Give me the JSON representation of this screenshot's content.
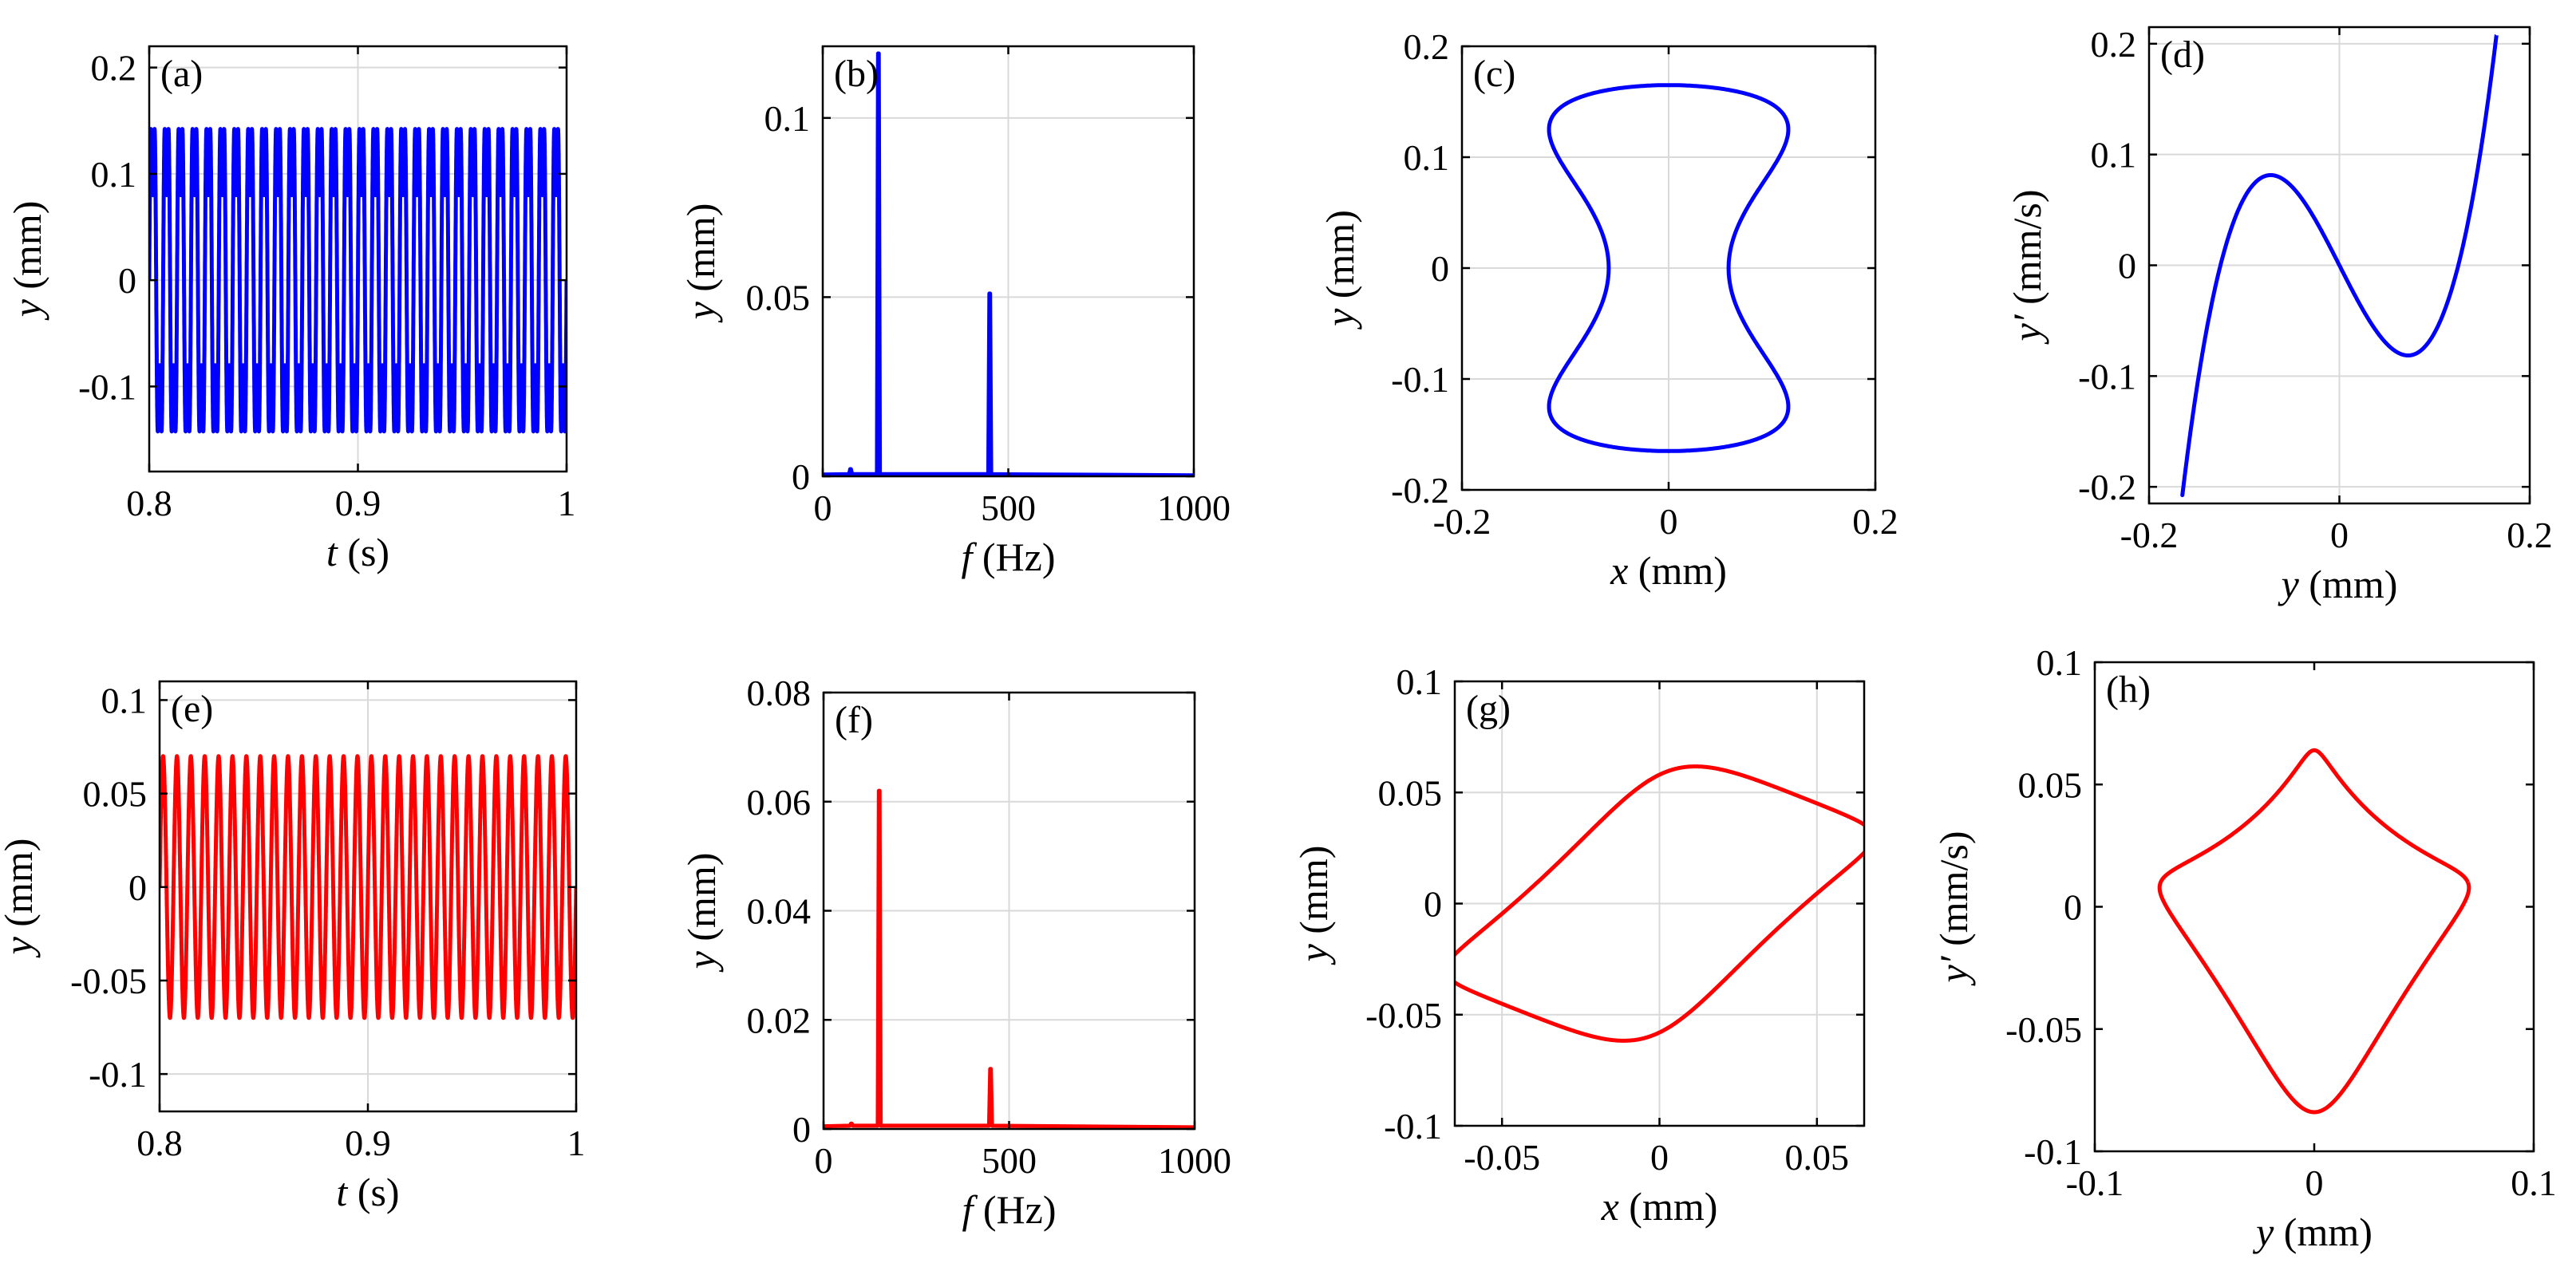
{
  "colors": {
    "top_row": "#0000ff",
    "bottom_row": "#ff0000"
  },
  "chart_data": [
    {
      "id": "a",
      "label": "(a)",
      "type": "line",
      "description": "time response, ~30 cycles between t=0.8 and 1 s, oscillating between -0.165 and 0.165 mm with small secondary wiggle near 0",
      "xlabel_italic": "t",
      "xlabel_unit": " (s)",
      "ylabel_italic": "y",
      "ylabel_unit": " (mm)",
      "xlim": [
        0.8,
        1.0
      ],
      "ylim": [
        -0.18,
        0.22
      ],
      "xticks": [
        0.8,
        0.9,
        1.0
      ],
      "xtick_labels": [
        "0.8",
        "0.9",
        "1"
      ],
      "yticks": [
        -0.1,
        0,
        0.1,
        0.2
      ],
      "ytick_labels": [
        "-0.1",
        "0",
        "0.1",
        "0.2"
      ],
      "grid": true,
      "color": "#0000ff",
      "signal": {
        "frequency_hz": 150,
        "amplitude": 0.165,
        "cycles_in_window": 30,
        "min": -0.165,
        "max": 0.165
      }
    },
    {
      "id": "b",
      "label": "(b)",
      "type": "line",
      "description": "frequency spectrum",
      "xlabel_italic": "f",
      "xlabel_unit": " (Hz)",
      "ylabel_italic": "y",
      "ylabel_unit": " (mm)",
      "xlim": [
        0,
        1000
      ],
      "ylim": [
        0,
        0.12
      ],
      "xticks": [
        0,
        500,
        1000
      ],
      "xtick_labels": [
        "0",
        "500",
        "1000"
      ],
      "yticks": [
        0,
        0.05,
        0.1
      ],
      "ytick_labels": [
        "0",
        "0.05",
        "0.1"
      ],
      "grid": true,
      "color": "#0000ff",
      "peaks": [
        {
          "f": 75,
          "amplitude": 0.002
        },
        {
          "f": 150,
          "amplitude": 0.118
        },
        {
          "f": 450,
          "amplitude": 0.051
        }
      ]
    },
    {
      "id": "c",
      "label": "(c)",
      "type": "line",
      "description": "orbit (x vs y), double-lobed closed curve with inner loops near (-0.1, 0) and (0.1, 0)",
      "xlabel_italic": "x",
      "xlabel_unit": "  (mm)",
      "ylabel_italic": "y",
      "ylabel_unit": "  (mm)",
      "xlim": [
        -0.2,
        0.2
      ],
      "ylim": [
        -0.2,
        0.2
      ],
      "xticks": [
        -0.2,
        0,
        0.2
      ],
      "xtick_labels": [
        "-0.2",
        "0",
        "0.2"
      ],
      "yticks": [
        -0.2,
        -0.1,
        0,
        0.1,
        0.2
      ],
      "ytick_labels": [
        "-0.2",
        "-0.1",
        "0",
        "0.1",
        "0.2"
      ],
      "grid": true,
      "color": "#0000ff",
      "extent": {
        "x_min": -0.16,
        "x_max": 0.16,
        "y_min": -0.165,
        "y_max": 0.165
      }
    },
    {
      "id": "d",
      "label": "(d)",
      "type": "line",
      "description": "phase portrait (y vs y'), figure-eight shape crossing near origin",
      "xlabel_italic": "y",
      "xlabel_unit": " (mm)",
      "ylabel_italic": "y′",
      "ylabel_unit": " (mm/s)",
      "xlim": [
        -0.2,
        0.2
      ],
      "ylim": [
        -0.215,
        0.215
      ],
      "xticks": [
        -0.2,
        0,
        0.2
      ],
      "xtick_labels": [
        "-0.2",
        "0",
        "0.2"
      ],
      "yticks": [
        -0.2,
        -0.1,
        0,
        0.1,
        0.2
      ],
      "ytick_labels": [
        "-0.2",
        "-0.1",
        "0",
        "0.1",
        "0.2"
      ],
      "grid": true,
      "color": "#0000ff",
      "extent": {
        "x_min": -0.165,
        "x_max": 0.165,
        "y_min": -0.21,
        "y_max": 0.21
      }
    },
    {
      "id": "e",
      "label": "(e)",
      "type": "line",
      "description": "time response, ~30 cycles, oscillating between -0.07 and 0.07 mm",
      "xlabel_italic": "t",
      "xlabel_unit": " (s)",
      "ylabel_italic": "y",
      "ylabel_unit": " (mm)",
      "xlim": [
        0.8,
        1.0
      ],
      "ylim": [
        -0.12,
        0.11
      ],
      "xticks": [
        0.8,
        0.9,
        1.0
      ],
      "xtick_labels": [
        "0.8",
        "0.9",
        "1"
      ],
      "yticks": [
        -0.1,
        -0.05,
        0,
        0.05,
        0.1
      ],
      "ytick_labels": [
        "-0.1",
        "-0.05",
        "0",
        "0.05",
        "0.1"
      ],
      "grid": true,
      "color": "#ff0000",
      "signal": {
        "frequency_hz": 150,
        "amplitude": 0.07,
        "cycles_in_window": 30,
        "min": -0.07,
        "max": 0.07
      }
    },
    {
      "id": "f",
      "label": "(f)",
      "type": "line",
      "description": "frequency spectrum",
      "xlabel_italic": "f",
      "xlabel_unit": " (Hz)",
      "ylabel_italic": "y",
      "ylabel_unit": "  (mm)",
      "xlim": [
        0,
        1000
      ],
      "ylim": [
        0,
        0.08
      ],
      "xticks": [
        0,
        500,
        1000
      ],
      "xtick_labels": [
        "0",
        "500",
        "1000"
      ],
      "yticks": [
        0,
        0.02,
        0.04,
        0.06,
        0.08
      ],
      "ytick_labels": [
        "0",
        "0.02",
        "0.04",
        "0.06",
        "0.08"
      ],
      "grid": true,
      "color": "#ff0000",
      "peaks": [
        {
          "f": 75,
          "amplitude": 0.001
        },
        {
          "f": 150,
          "amplitude": 0.062
        },
        {
          "f": 450,
          "amplitude": 0.011
        }
      ]
    },
    {
      "id": "g",
      "label": "(g)",
      "type": "line",
      "description": "orbit (x vs y), tilted bean-shaped closed curve",
      "xlabel_italic": "x",
      "xlabel_unit": "  (mm)",
      "ylabel_italic": "y",
      "ylabel_unit": "  (mm)",
      "xlim": [
        -0.065,
        0.065
      ],
      "ylim": [
        -0.1,
        0.1
      ],
      "xticks": [
        -0.05,
        0,
        0.05
      ],
      "xtick_labels": [
        "-0.05",
        "0",
        "0.05"
      ],
      "yticks": [
        -0.1,
        -0.05,
        0,
        0.05,
        0.1
      ],
      "ytick_labels": [
        "-0.1",
        "-0.05",
        "0",
        "0.05",
        "0.1"
      ],
      "grid": true,
      "color": "#ff0000",
      "extent": {
        "x_min": -0.065,
        "x_max": 0.065,
        "y_min": -0.07,
        "y_max": 0.07
      }
    },
    {
      "id": "h",
      "label": "(h)",
      "type": "line",
      "description": "phase portrait (y vs y'), closed curve with two inward dents",
      "xlabel_italic": "y",
      "xlabel_unit": " (mm)",
      "ylabel_italic": "y′",
      "ylabel_unit": " (mm/s)",
      "xlim": [
        -0.1,
        0.1
      ],
      "ylim": [
        -0.1,
        0.1
      ],
      "xticks": [
        -0.1,
        0,
        0.1
      ],
      "xtick_labels": [
        "-0.1",
        "0",
        "0.1"
      ],
      "yticks": [
        -0.1,
        -0.05,
        0,
        0.05,
        0.1
      ],
      "ytick_labels": [
        "-0.1",
        "-0.05",
        "0",
        "0.05",
        "0.1"
      ],
      "grid": false,
      "color": "#ff0000",
      "extent": {
        "x_min": -0.07,
        "x_max": 0.07,
        "y_min": -0.079,
        "y_max": 0.079
      }
    }
  ]
}
